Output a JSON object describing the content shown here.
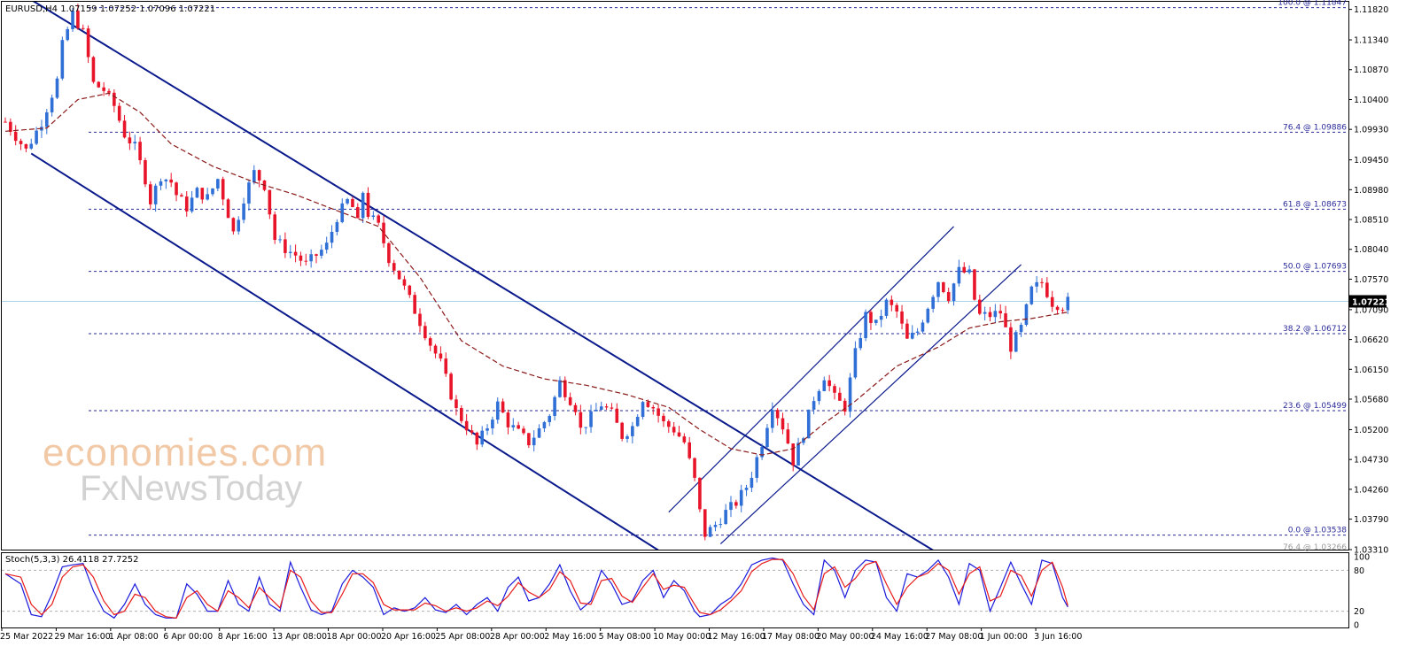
{
  "chart_data": {
    "type": "candlestick",
    "header": "EURUSD,H4  1.07159 1.07252 1.07096 1.07221",
    "symbol": "EURUSD,H4",
    "ohlc_last": {
      "open": 1.07159,
      "high": 1.07252,
      "low": 1.07096,
      "close": 1.07221
    },
    "current_price_label": "1.07221",
    "ylim": [
      1.0331,
      1.1194
    ],
    "price_ticks": [
      "1.11820",
      "1.11340",
      "1.10870",
      "1.10400",
      "1.09930",
      "1.09450",
      "1.08980",
      "1.08510",
      "1.08040",
      "1.07570",
      "1.07090",
      "1.06620",
      "1.06150",
      "1.05680",
      "1.05200",
      "1.04730",
      "1.04260",
      "1.03790",
      "1.03310"
    ],
    "x_ticks": [
      "25 Mar 2022",
      "29 Mar 16:00",
      "1 Apr 08:00",
      "6 Apr 00:00",
      "8 Apr 16:00",
      "13 Apr 08:00",
      "18 Apr 00:00",
      "20 Apr 16:00",
      "25 Apr 08:00",
      "28 Apr 00:00",
      "2 May 16:00",
      "5 May 08:00",
      "10 May 00:00",
      "12 May 16:00",
      "17 May 08:00",
      "20 May 00:00",
      "24 May 16:00",
      "27 May 08:00",
      "1 Jun 00:00",
      "3 Jun 16:00"
    ],
    "fibonacci_levels": [
      {
        "label": "100.0 @ 1.11847",
        "value": 1.11847
      },
      {
        "label": "76.4 @ 1.09886",
        "value": 1.09886
      },
      {
        "label": "61.8 @ 1.08673",
        "value": 1.08673
      },
      {
        "label": "50.0 @ 1.07693",
        "value": 1.07693
      },
      {
        "label": "38.2 @ 1.06712",
        "value": 1.06712
      },
      {
        "label": "23.6 @ 1.05499",
        "value": 1.05499
      },
      {
        "label": "0.0 @ 1.03538",
        "value": 1.03538
      },
      {
        "label": "76.4 @ 1.03266",
        "value": 1.03266
      }
    ],
    "close_path": [
      [
        0,
        1.1005
      ],
      [
        4,
        1.096
      ],
      [
        7,
        1.1005
      ],
      [
        10,
        1.107
      ],
      [
        11,
        1.1125
      ],
      [
        13,
        1.1175
      ],
      [
        15,
        1.1145
      ],
      [
        17,
        1.1065
      ],
      [
        19,
        1.1055
      ],
      [
        21,
        1.103
      ],
      [
        23,
        1.0985
      ],
      [
        25,
        1.0965
      ],
      [
        27,
        1.0915
      ],
      [
        28,
        1.088
      ],
      [
        30,
        1.092
      ],
      [
        32,
        1.091
      ],
      [
        33,
        1.089
      ],
      [
        35,
        1.087
      ],
      [
        37,
        1.0895
      ],
      [
        39,
        1.0885
      ],
      [
        41,
        1.0915
      ],
      [
        43,
        1.086
      ],
      [
        44,
        1.083
      ],
      [
        46,
        1.0885
      ],
      [
        48,
        1.0925
      ],
      [
        50,
        1.0905
      ],
      [
        52,
        1.082
      ],
      [
        54,
        1.0805
      ],
      [
        56,
        1.0795
      ],
      [
        58,
        1.078
      ],
      [
        60,
        1.0795
      ],
      [
        62,
        1.081
      ],
      [
        64,
        1.0855
      ],
      [
        66,
        1.088
      ],
      [
        67,
        1.087
      ],
      [
        68,
        1.0845
      ],
      [
        69,
        1.0895
      ],
      [
        70,
        1.086
      ],
      [
        72,
        1.084
      ],
      [
        74,
        1.079
      ],
      [
        76,
        1.076
      ],
      [
        78,
        1.0725
      ],
      [
        80,
        1.069
      ],
      [
        82,
        1.0655
      ],
      [
        84,
        1.0625
      ],
      [
        86,
        1.0575
      ],
      [
        87,
        1.055
      ],
      [
        89,
        1.0525
      ],
      [
        91,
        1.0495
      ],
      [
        93,
        1.0525
      ],
      [
        95,
        1.056
      ],
      [
        97,
        1.053
      ],
      [
        99,
        1.0515
      ],
      [
        101,
        1.05
      ],
      [
        103,
        1.052
      ],
      [
        105,
        1.0545
      ],
      [
        107,
        1.0595
      ],
      [
        108,
        1.058
      ],
      [
        110,
        1.0555
      ],
      [
        111,
        1.052
      ],
      [
        113,
        1.054
      ],
      [
        115,
        1.056
      ],
      [
        117,
        1.0545
      ],
      [
        119,
        1.051
      ],
      [
        121,
        1.0525
      ],
      [
        123,
        1.057
      ],
      [
        125,
        1.0555
      ],
      [
        127,
        1.053
      ],
      [
        129,
        1.052
      ],
      [
        131,
        1.05
      ],
      [
        133,
        1.044
      ],
      [
        134,
        1.039
      ],
      [
        135,
        1.0355
      ],
      [
        137,
        1.037
      ],
      [
        139,
        1.039
      ],
      [
        141,
        1.0405
      ],
      [
        143,
        1.043
      ],
      [
        144,
        1.045
      ],
      [
        146,
        1.05
      ],
      [
        148,
        1.056
      ],
      [
        150,
        1.0525
      ],
      [
        151,
        1.05
      ],
      [
        152,
        1.047
      ],
      [
        154,
        1.0515
      ],
      [
        156,
        1.057
      ],
      [
        158,
        1.0605
      ],
      [
        160,
        1.057
      ],
      [
        162,
        1.0555
      ],
      [
        164,
        1.064
      ],
      [
        166,
        1.07
      ],
      [
        168,
        1.0685
      ],
      [
        170,
        1.072
      ],
      [
        172,
        1.0705
      ],
      [
        174,
        1.066
      ],
      [
        176,
        1.0675
      ],
      [
        178,
        1.0715
      ],
      [
        180,
        1.0755
      ],
      [
        182,
        1.073
      ],
      [
        184,
        1.077
      ],
      [
        186,
        1.0765
      ],
      [
        187,
        1.0725
      ],
      [
        188,
        1.07
      ],
      [
        190,
        1.07
      ],
      [
        192,
        1.0705
      ],
      [
        194,
        1.065
      ],
      [
        196,
        1.068
      ],
      [
        198,
        1.074
      ],
      [
        200,
        1.0752
      ],
      [
        202,
        1.072
      ],
      [
        204,
        1.0715
      ],
      [
        205,
        1.0722
      ]
    ],
    "moving_average": [
      [
        0,
        1.099
      ],
      [
        8,
        1.0995
      ],
      [
        14,
        1.104
      ],
      [
        20,
        1.105
      ],
      [
        26,
        1.102
      ],
      [
        32,
        1.097
      ],
      [
        40,
        1.0935
      ],
      [
        48,
        1.091
      ],
      [
        56,
        1.089
      ],
      [
        64,
        1.0865
      ],
      [
        72,
        1.084
      ],
      [
        80,
        1.076
      ],
      [
        88,
        1.066
      ],
      [
        96,
        1.062
      ],
      [
        104,
        1.06
      ],
      [
        112,
        1.059
      ],
      [
        120,
        1.0575
      ],
      [
        128,
        1.0555
      ],
      [
        134,
        1.052
      ],
      [
        140,
        1.049
      ],
      [
        146,
        1.048
      ],
      [
        152,
        1.049
      ],
      [
        158,
        1.053
      ],
      [
        164,
        1.0565
      ],
      [
        172,
        1.062
      ],
      [
        180,
        1.065
      ],
      [
        186,
        1.068
      ],
      [
        192,
        1.069
      ],
      [
        198,
        1.0695
      ],
      [
        205,
        1.0705
      ]
    ],
    "trend_channels": [
      {
        "name": "falling channel upper",
        "points": [
          [
            1.4,
            1.1215
          ],
          [
            179,
            1.033
          ]
        ]
      },
      {
        "name": "falling channel lower",
        "points": [
          [
            5,
            1.0955
          ],
          [
            126,
            1.033
          ]
        ]
      },
      {
        "name": "rising channel lower",
        "points": [
          [
            138,
            1.034
          ],
          [
            196,
            1.078
          ]
        ]
      },
      {
        "name": "rising channel upper",
        "points": [
          [
            128,
            1.039
          ],
          [
            183,
            1.084
          ]
        ]
      }
    ],
    "stochastic": {
      "label": "Stoch(5,3,3) 26.4118 27.7252",
      "k": 26.4118,
      "d": 27.7252,
      "levels": [
        80,
        20
      ],
      "ticks": [
        "100",
        "80",
        "20",
        "0"
      ],
      "ylim": [
        0,
        100
      ],
      "k_path": [
        [
          0,
          75
        ],
        [
          3,
          60
        ],
        [
          5,
          15
        ],
        [
          7,
          12
        ],
        [
          9,
          45
        ],
        [
          11,
          85
        ],
        [
          13,
          88
        ],
        [
          15,
          90
        ],
        [
          17,
          50
        ],
        [
          19,
          20
        ],
        [
          21,
          10
        ],
        [
          23,
          30
        ],
        [
          25,
          60
        ],
        [
          27,
          30
        ],
        [
          29,
          15
        ],
        [
          31,
          10
        ],
        [
          33,
          10
        ],
        [
          35,
          60
        ],
        [
          37,
          45
        ],
        [
          39,
          20
        ],
        [
          41,
          20
        ],
        [
          43,
          65
        ],
        [
          45,
          30
        ],
        [
          47,
          20
        ],
        [
          49,
          70
        ],
        [
          51,
          30
        ],
        [
          53,
          20
        ],
        [
          55,
          92
        ],
        [
          57,
          55
        ],
        [
          59,
          22
        ],
        [
          61,
          15
        ],
        [
          63,
          20
        ],
        [
          65,
          60
        ],
        [
          67,
          80
        ],
        [
          69,
          70
        ],
        [
          71,
          55
        ],
        [
          73,
          15
        ],
        [
          75,
          25
        ],
        [
          77,
          20
        ],
        [
          79,
          25
        ],
        [
          81,
          40
        ],
        [
          83,
          22
        ],
        [
          85,
          18
        ],
        [
          87,
          30
        ],
        [
          89,
          15
        ],
        [
          91,
          30
        ],
        [
          93,
          40
        ],
        [
          95,
          20
        ],
        [
          97,
          55
        ],
        [
          99,
          70
        ],
        [
          101,
          35
        ],
        [
          103,
          40
        ],
        [
          105,
          60
        ],
        [
          107,
          88
        ],
        [
          109,
          50
        ],
        [
          111,
          22
        ],
        [
          113,
          35
        ],
        [
          115,
          80
        ],
        [
          117,
          60
        ],
        [
          119,
          30
        ],
        [
          121,
          35
        ],
        [
          123,
          65
        ],
        [
          125,
          80
        ],
        [
          127,
          40
        ],
        [
          129,
          65
        ],
        [
          131,
          50
        ],
        [
          133,
          20
        ],
        [
          134,
          12
        ],
        [
          136,
          15
        ],
        [
          138,
          30
        ],
        [
          140,
          40
        ],
        [
          142,
          60
        ],
        [
          144,
          88
        ],
        [
          146,
          95
        ],
        [
          148,
          98
        ],
        [
          150,
          95
        ],
        [
          152,
          60
        ],
        [
          154,
          30
        ],
        [
          156,
          15
        ],
        [
          158,
          95
        ],
        [
          160,
          80
        ],
        [
          162,
          40
        ],
        [
          164,
          80
        ],
        [
          166,
          95
        ],
        [
          168,
          92
        ],
        [
          170,
          40
        ],
        [
          172,
          20
        ],
        [
          174,
          75
        ],
        [
          176,
          70
        ],
        [
          178,
          80
        ],
        [
          180,
          95
        ],
        [
          182,
          70
        ],
        [
          184,
          30
        ],
        [
          186,
          90
        ],
        [
          188,
          80
        ],
        [
          190,
          20
        ],
        [
          192,
          55
        ],
        [
          194,
          92
        ],
        [
          196,
          60
        ],
        [
          198,
          30
        ],
        [
          200,
          95
        ],
        [
          202,
          90
        ],
        [
          204,
          40
        ],
        [
          205,
          26
        ]
      ],
      "d_path": [
        [
          0,
          75
        ],
        [
          3,
          70
        ],
        [
          5,
          30
        ],
        [
          7,
          15
        ],
        [
          9,
          30
        ],
        [
          11,
          70
        ],
        [
          13,
          85
        ],
        [
          15,
          88
        ],
        [
          17,
          70
        ],
        [
          19,
          35
        ],
        [
          21,
          15
        ],
        [
          23,
          20
        ],
        [
          25,
          45
        ],
        [
          27,
          40
        ],
        [
          29,
          20
        ],
        [
          31,
          12
        ],
        [
          33,
          10
        ],
        [
          35,
          40
        ],
        [
          37,
          50
        ],
        [
          39,
          30
        ],
        [
          41,
          20
        ],
        [
          43,
          50
        ],
        [
          45,
          40
        ],
        [
          47,
          25
        ],
        [
          49,
          55
        ],
        [
          51,
          40
        ],
        [
          53,
          25
        ],
        [
          55,
          80
        ],
        [
          57,
          70
        ],
        [
          59,
          35
        ],
        [
          61,
          18
        ],
        [
          63,
          18
        ],
        [
          65,
          45
        ],
        [
          67,
          75
        ],
        [
          69,
          75
        ],
        [
          71,
          62
        ],
        [
          73,
          30
        ],
        [
          75,
          22
        ],
        [
          77,
          22
        ],
        [
          79,
          22
        ],
        [
          81,
          32
        ],
        [
          83,
          28
        ],
        [
          85,
          20
        ],
        [
          87,
          25
        ],
        [
          89,
          20
        ],
        [
          91,
          25
        ],
        [
          93,
          35
        ],
        [
          95,
          28
        ],
        [
          97,
          42
        ],
        [
          99,
          62
        ],
        [
          101,
          48
        ],
        [
          103,
          40
        ],
        [
          105,
          52
        ],
        [
          107,
          78
        ],
        [
          109,
          65
        ],
        [
          111,
          32
        ],
        [
          113,
          30
        ],
        [
          115,
          65
        ],
        [
          117,
          68
        ],
        [
          119,
          42
        ],
        [
          121,
          33
        ],
        [
          123,
          55
        ],
        [
          125,
          75
        ],
        [
          127,
          52
        ],
        [
          129,
          58
        ],
        [
          131,
          55
        ],
        [
          133,
          30
        ],
        [
          134,
          18
        ],
        [
          136,
          15
        ],
        [
          138,
          22
        ],
        [
          140,
          35
        ],
        [
          142,
          50
        ],
        [
          144,
          78
        ],
        [
          146,
          90
        ],
        [
          148,
          96
        ],
        [
          150,
          96
        ],
        [
          152,
          75
        ],
        [
          154,
          42
        ],
        [
          156,
          22
        ],
        [
          158,
          75
        ],
        [
          160,
          85
        ],
        [
          162,
          55
        ],
        [
          164,
          68
        ],
        [
          166,
          88
        ],
        [
          168,
          93
        ],
        [
          170,
          60
        ],
        [
          172,
          30
        ],
        [
          174,
          55
        ],
        [
          176,
          70
        ],
        [
          178,
          76
        ],
        [
          180,
          90
        ],
        [
          182,
          80
        ],
        [
          184,
          45
        ],
        [
          186,
          75
        ],
        [
          188,
          85
        ],
        [
          190,
          35
        ],
        [
          192,
          42
        ],
        [
          194,
          80
        ],
        [
          196,
          72
        ],
        [
          198,
          42
        ],
        [
          200,
          80
        ],
        [
          202,
          92
        ],
        [
          204,
          55
        ],
        [
          205,
          28
        ]
      ]
    },
    "colors": {
      "bull": "#2f6fd6",
      "bear": "#e8152a",
      "ma": "#8b1a1a",
      "channel": "#0a1a8c",
      "fib": "#2a2a9a",
      "stoch_k": "#1a1adc",
      "stoch_d": "#e81a1a",
      "price_line": "#a8d4ea"
    }
  },
  "watermark": {
    "line1": "economies.com",
    "line2": "FxNewsToday"
  }
}
